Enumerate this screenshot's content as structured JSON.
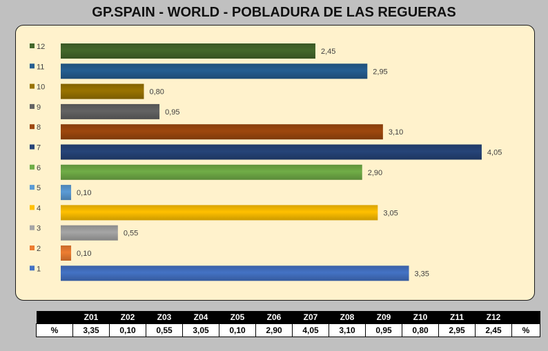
{
  "title": "GP.SPAIN - WORLD  - POBLADURA DE LAS REGUERAS",
  "chart_data": {
    "type": "bar",
    "orientation": "horizontal",
    "categories": [
      "1",
      "2",
      "3",
      "4",
      "5",
      "6",
      "7",
      "8",
      "9",
      "10",
      "11",
      "12"
    ],
    "values": [
      3.35,
      0.1,
      0.55,
      3.05,
      0.1,
      2.9,
      4.05,
      3.1,
      0.95,
      0.8,
      2.95,
      2.45
    ],
    "value_labels": [
      "3,35",
      "0,10",
      "0,55",
      "3,05",
      "0,10",
      "2,90",
      "4,05",
      "3,10",
      "0,95",
      "0,80",
      "2,95",
      "2,45"
    ],
    "colors": [
      "#4472c4",
      "#ed7d31",
      "#a5a5a5",
      "#ffc000",
      "#5b9bd5",
      "#70ad47",
      "#264478",
      "#9e480e",
      "#636363",
      "#997300",
      "#255e91",
      "#43682b"
    ],
    "xlim": [
      0,
      4.5
    ],
    "grid": false,
    "legend": "left"
  },
  "table": {
    "header": [
      "",
      "Z01",
      "Z02",
      "Z03",
      "Z04",
      "Z05",
      "Z06",
      "Z07",
      "Z08",
      "Z09",
      "Z10",
      "Z11",
      "Z12",
      ""
    ],
    "row": [
      "%",
      "3,35",
      "0,10",
      "0,55",
      "3,05",
      "0,10",
      "2,90",
      "4,05",
      "3,10",
      "0,95",
      "0,80",
      "2,95",
      "2,45",
      "%"
    ]
  }
}
